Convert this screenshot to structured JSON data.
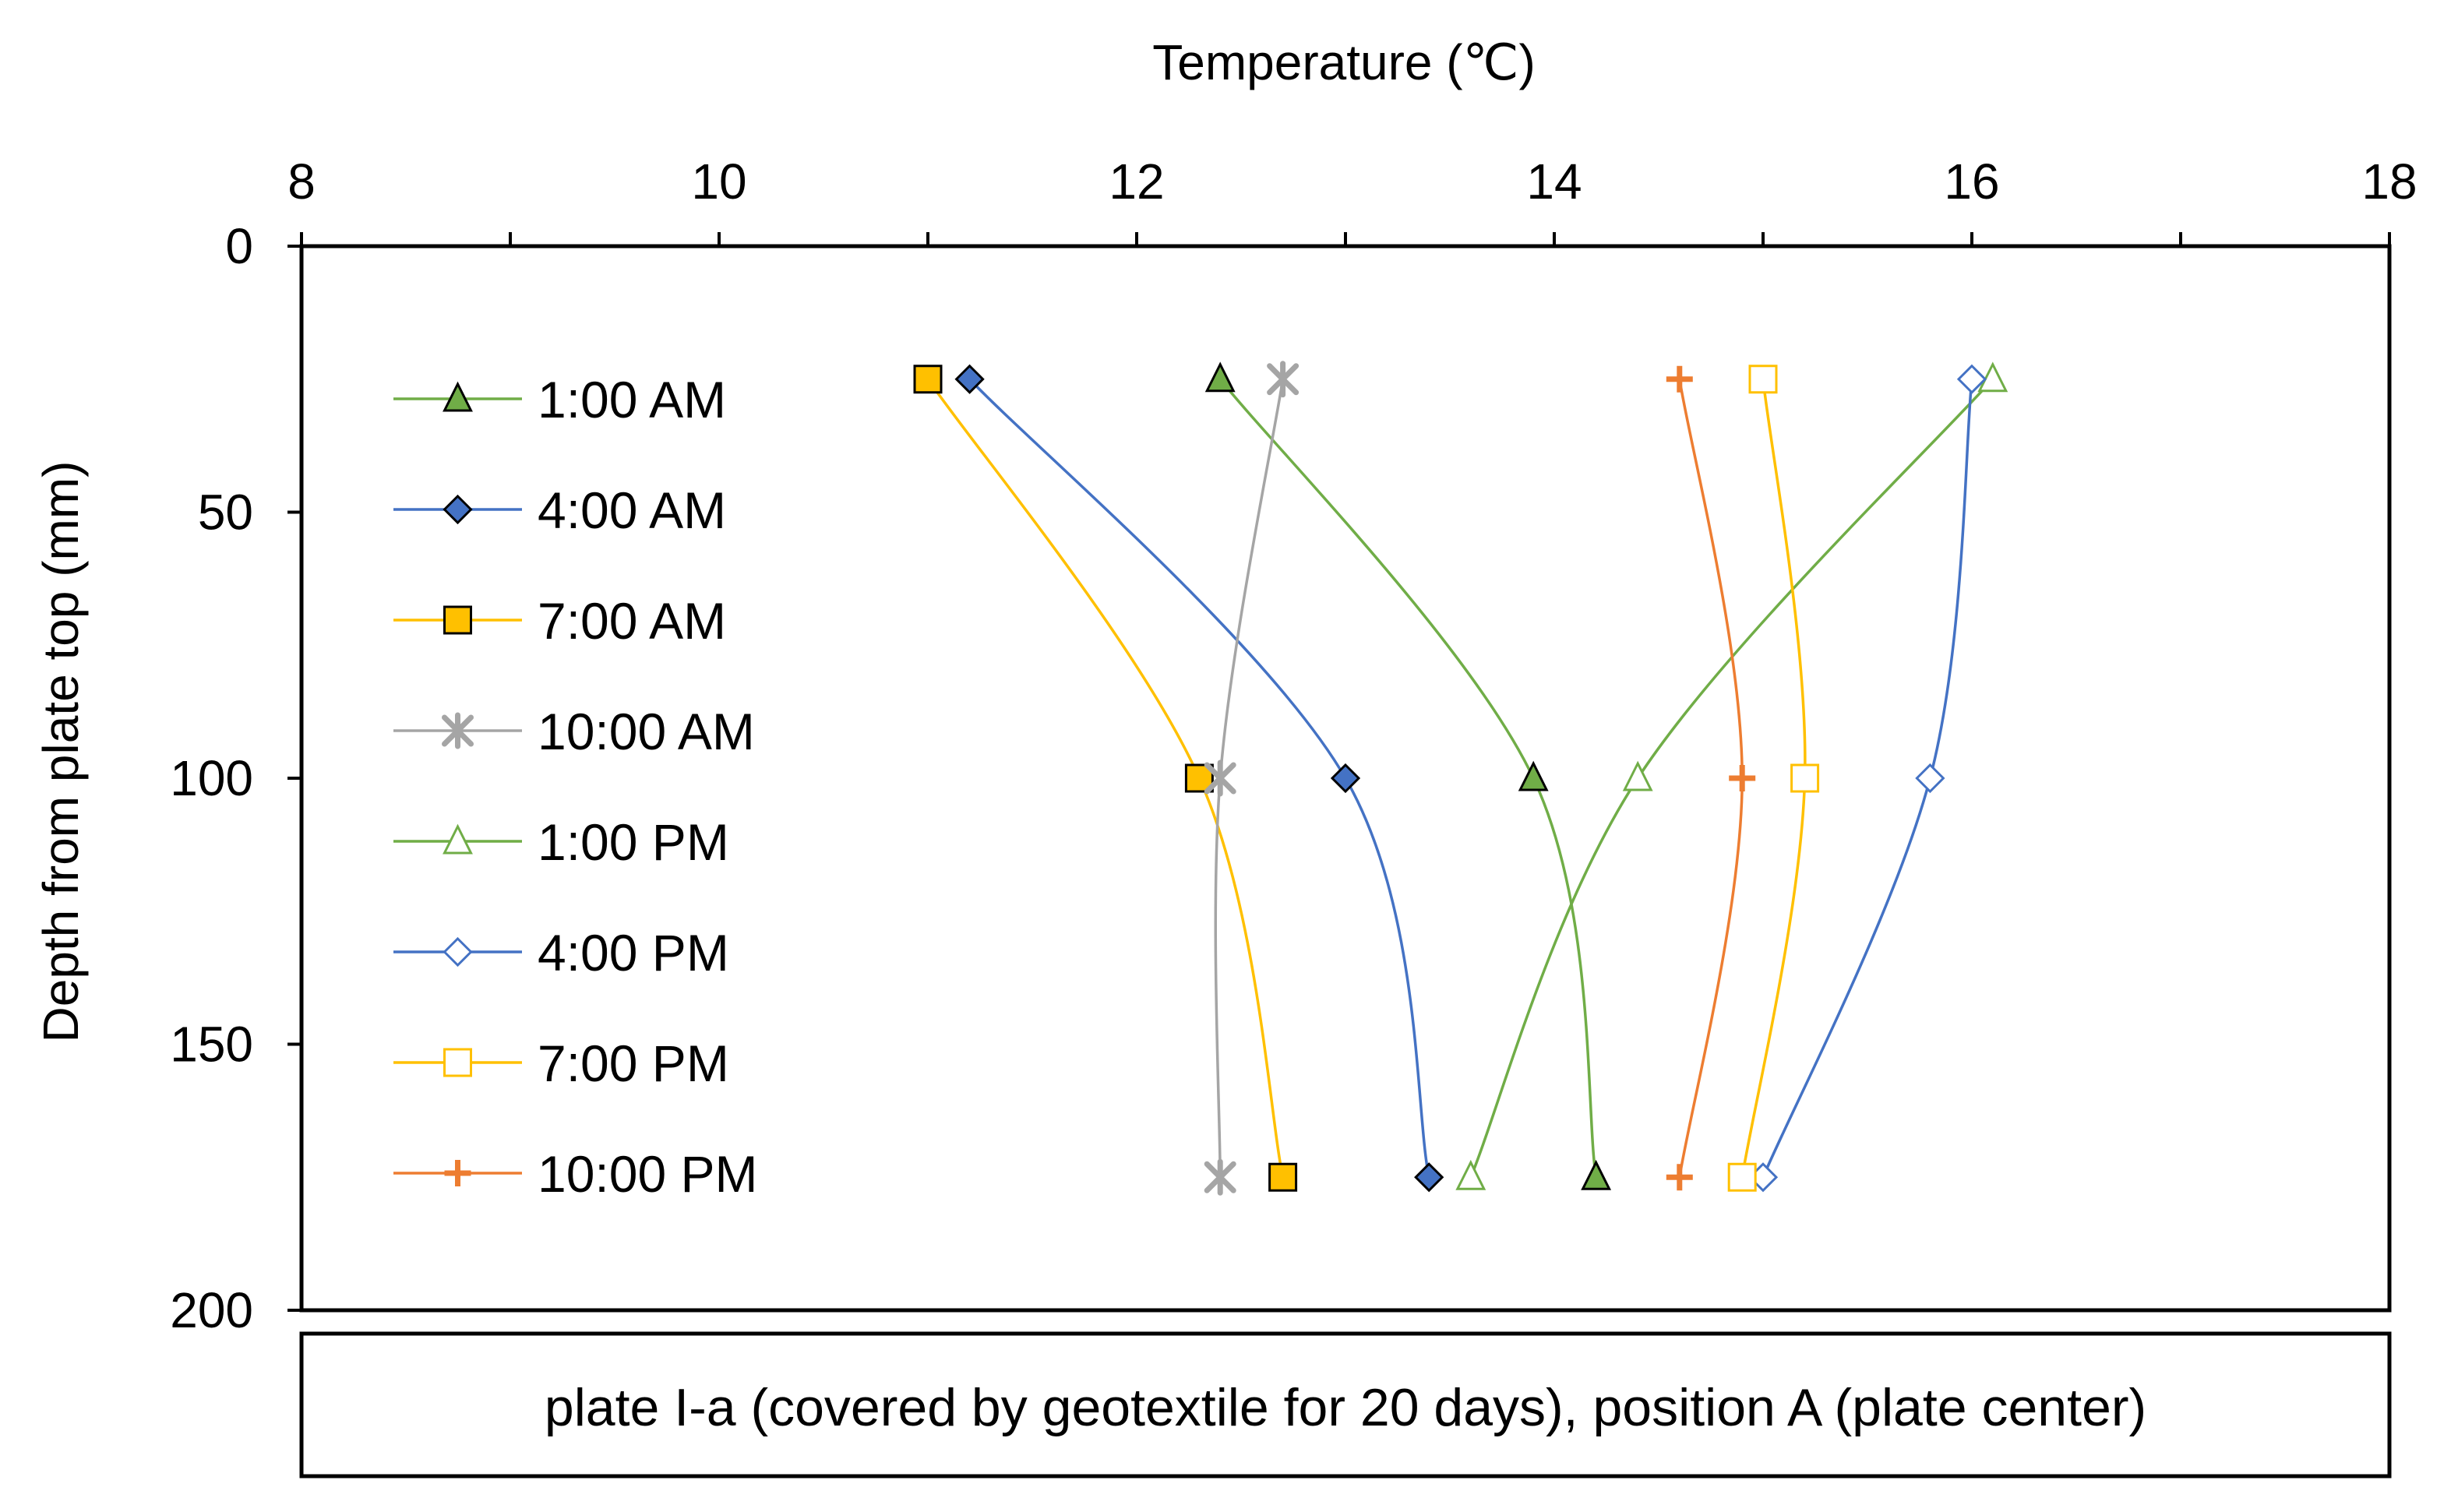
{
  "chart_data": {
    "type": "line",
    "title": "",
    "xlabel": "Temperature (℃)",
    "ylabel": "Depth from plate top (mm)",
    "x_axis_position": "top",
    "y_axis_inverted": true,
    "xlim": [
      8,
      18
    ],
    "ylim": [
      0,
      200
    ],
    "x_major_ticks": [
      8,
      10,
      12,
      14,
      16,
      18
    ],
    "x_tick_labels": [
      "8",
      "10",
      "12",
      "14",
      "16",
      "18"
    ],
    "y_major_ticks": [
      0,
      50,
      100,
      150,
      200
    ],
    "y_tick_labels": [
      "0",
      "50",
      "100",
      "150",
      "200"
    ],
    "grid": false,
    "legend_position": "left",
    "caption": "plate I-a (covered by geotextile for 20 days), position A (plate center)",
    "series": [
      {
        "name": "1:00 AM",
        "color": "#70AD47",
        "marker": "triangle-filled",
        "temperature": [
          12.4,
          13.9,
          14.2
        ],
        "depth": [
          25,
          100,
          175
        ]
      },
      {
        "name": "4:00 AM",
        "color": "#4472C4",
        "marker": "diamond-filled",
        "temperature": [
          11.2,
          13.0,
          13.4
        ],
        "depth": [
          25,
          100,
          175
        ]
      },
      {
        "name": "7:00 AM",
        "color": "#FFC000",
        "marker": "square-filled",
        "temperature": [
          11.0,
          12.3,
          12.7
        ],
        "depth": [
          25,
          100,
          175
        ]
      },
      {
        "name": "10:00 AM",
        "color": "#A5A5A5",
        "marker": "asterisk",
        "temperature": [
          12.7,
          12.4,
          12.4
        ],
        "depth": [
          25,
          100,
          175
        ]
      },
      {
        "name": "1:00 PM",
        "color": "#70AD47",
        "marker": "triangle-open",
        "temperature": [
          16.1,
          14.4,
          13.6
        ],
        "depth": [
          25,
          100,
          175
        ]
      },
      {
        "name": "4:00 PM",
        "color": "#4472C4",
        "marker": "diamond-open",
        "temperature": [
          16.0,
          15.8,
          15.0
        ],
        "depth": [
          25,
          100,
          175
        ]
      },
      {
        "name": "7:00 PM",
        "color": "#FFC000",
        "marker": "square-open",
        "temperature": [
          15.0,
          15.2,
          14.9
        ],
        "depth": [
          25,
          100,
          175
        ]
      },
      {
        "name": "10:00 PM",
        "color": "#ED7D31",
        "marker": "plus",
        "temperature": [
          14.6,
          14.9,
          14.6
        ],
        "depth": [
          25,
          100,
          175
        ]
      }
    ]
  }
}
